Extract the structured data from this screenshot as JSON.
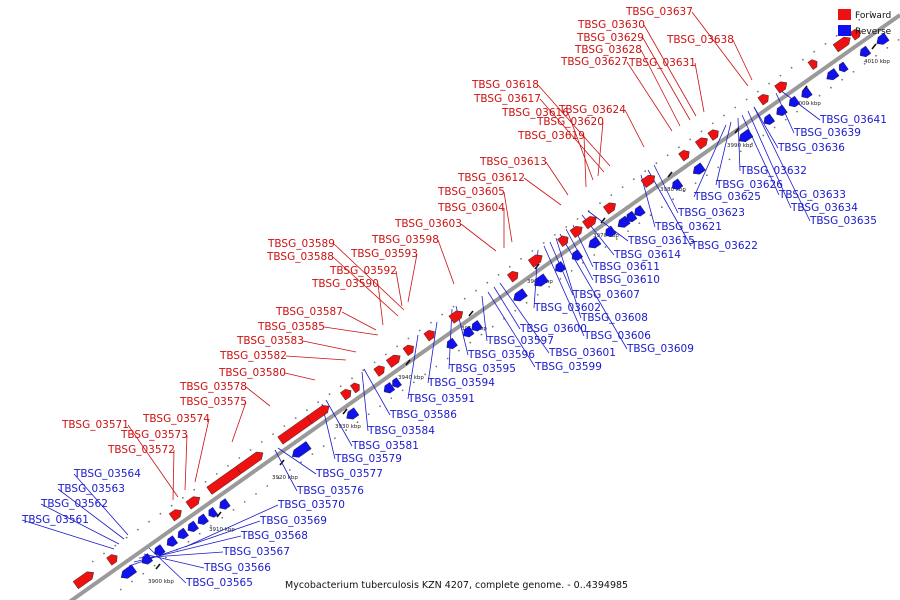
{
  "footer": {
    "caption": "Mycobacterium tuberculosis KZN 4207, complete genome. - 0..4394985"
  },
  "legend": {
    "forward_label": "Forward",
    "reverse_label": "Reverse",
    "forward_color": "#ee1111",
    "reverse_color": "#1111ee"
  },
  "colors": {
    "forward_text": "#cc1111",
    "reverse_text": "#1a1acc",
    "axis": "#999999"
  },
  "axis_ticks": [
    "3900 kbp",
    "3910 kbp",
    "3920 kbp",
    "3930 kbp",
    "3940 kbp",
    "3950 kbp",
    "3960 kbp",
    "3970 kbp",
    "3980 kbp",
    "3990 kbp",
    "4000 kbp",
    "4010 kbp"
  ],
  "forward_genes": [
    "TBSG_03571",
    "TBSG_03572",
    "TBSG_03573",
    "TBSG_03574",
    "TBSG_03575",
    "TBSG_03578",
    "TBSG_03580",
    "TBSG_03582",
    "TBSG_03583",
    "TBSG_03585",
    "TBSG_03587",
    "TBSG_03590",
    "TBSG_03588",
    "TBSG_03589",
    "TBSG_03592",
    "TBSG_03593",
    "TBSG_03598",
    "TBSG_03603",
    "TBSG_03604",
    "TBSG_03605",
    "TBSG_03612",
    "TBSG_03613",
    "TBSG_03619",
    "TBSG_03616",
    "TBSG_03620",
    "TBSG_03617",
    "TBSG_03618",
    "TBSG_03624",
    "TBSG_03627",
    "TBSG_03628",
    "TBSG_03629",
    "TBSG_03630",
    "TBSG_03631",
    "TBSG_03637",
    "TBSG_03638"
  ],
  "reverse_genes": [
    "TBSG_03561",
    "TBSG_03562",
    "TBSG_03563",
    "TBSG_03564",
    "TBSG_03565",
    "TBSG_03566",
    "TBSG_03567",
    "TBSG_03568",
    "TBSG_03569",
    "TBSG_03570",
    "TBSG_03576",
    "TBSG_03577",
    "TBSG_03579",
    "TBSG_03581",
    "TBSG_03584",
    "TBSG_03586",
    "TBSG_03591",
    "TBSG_03594",
    "TBSG_03595",
    "TBSG_03596",
    "TBSG_03597",
    "TBSG_03599",
    "TBSG_03600",
    "TBSG_03601",
    "TBSG_03602",
    "TBSG_03606",
    "TBSG_03607",
    "TBSG_03608",
    "TBSG_03609",
    "TBSG_03610",
    "TBSG_03611",
    "TBSG_03614",
    "TBSG_03615",
    "TBSG_03621",
    "TBSG_03622",
    "TBSG_03623",
    "TBSG_03625",
    "TBSG_03626",
    "TBSG_03632",
    "TBSG_03633",
    "TBSG_03634",
    "TBSG_03635",
    "TBSG_03636",
    "TBSG_03639",
    "TBSG_03641"
  ]
}
